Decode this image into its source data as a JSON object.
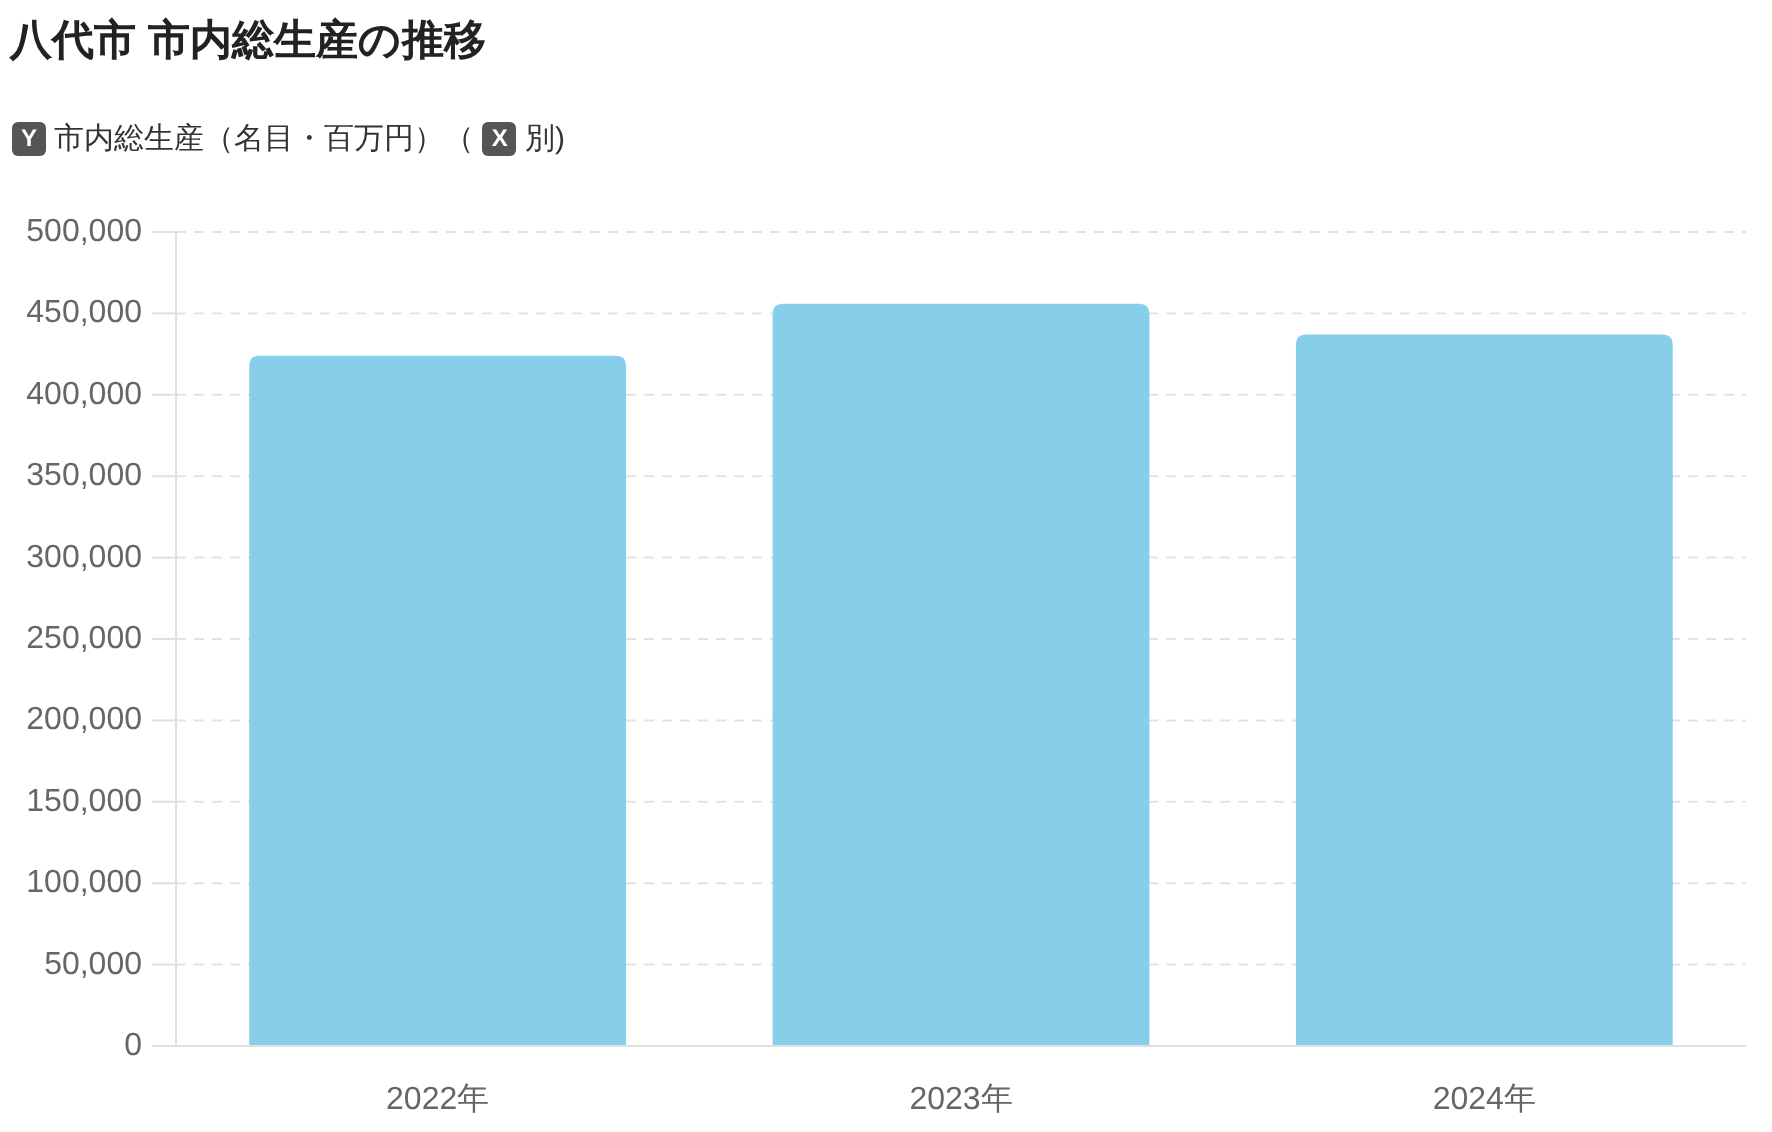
{
  "chart_data": {
    "type": "bar",
    "title": "八代市 市内総生産の推移",
    "subtitle": "Y 市内総生産（名目・百万円）（ X 別)",
    "categories": [
      "2022年",
      "2023年",
      "2024年"
    ],
    "values": [
      424000,
      456000,
      437000
    ],
    "color": "#87ceeb",
    "ylim": [
      0,
      500000
    ],
    "yticks": [
      {
        "value": 0,
        "label": "0"
      },
      {
        "value": 50000,
        "label": "50,000"
      },
      {
        "value": 100000,
        "label": "100,000"
      },
      {
        "value": 150000,
        "label": "150,000"
      },
      {
        "value": 200000,
        "label": "200,000"
      },
      {
        "value": 250000,
        "label": "250,000"
      },
      {
        "value": 300000,
        "label": "300,000"
      },
      {
        "value": 350000,
        "label": "350,000"
      },
      {
        "value": 400000,
        "label": "400,000"
      },
      {
        "value": 450000,
        "label": "450,000"
      },
      {
        "value": 500000,
        "label": "500,000"
      }
    ],
    "grid": "y"
  }
}
